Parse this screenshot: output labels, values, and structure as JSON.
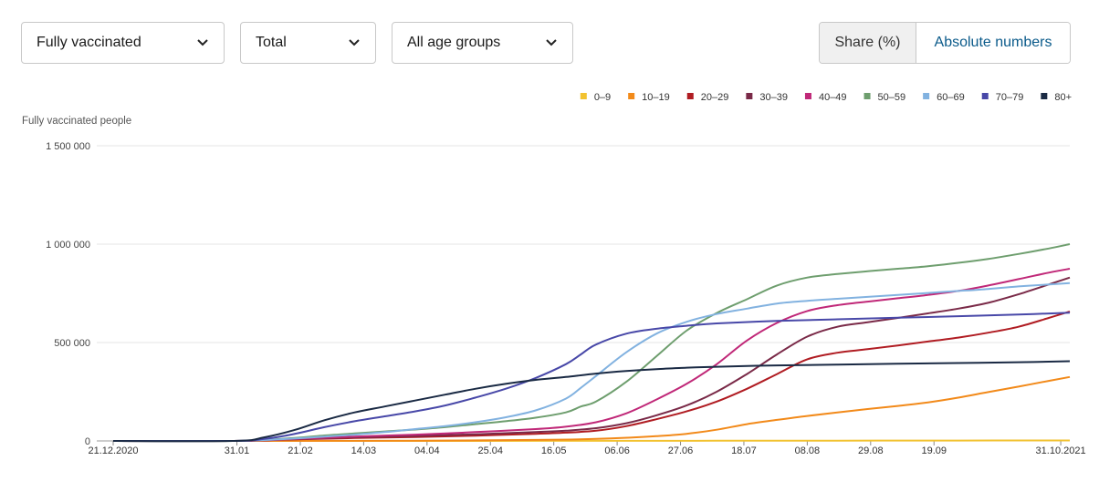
{
  "controls": {
    "dose_select": "Fully vaccinated",
    "sex_select": "Total",
    "age_select": "All age groups",
    "toggle": {
      "share_label": "Share (%)",
      "absolute_label": "Absolute numbers",
      "active": "absolute"
    }
  },
  "chart_data": {
    "type": "line",
    "ylabel": "Fully vaccinated people",
    "ylim": [
      0,
      1500000
    ],
    "y_ticks": [
      0,
      500000,
      1000000,
      1500000
    ],
    "y_tick_labels": [
      "0",
      "500 000",
      "1 000 000",
      "1 500 000"
    ],
    "x_tick_labels": [
      "21.12.2020",
      "31.01",
      "21.02",
      "14.03",
      "04.04",
      "25.04",
      "16.05",
      "06.06",
      "27.06",
      "18.07",
      "08.08",
      "29.08",
      "19.09",
      "31.10.2021"
    ],
    "x_tick_days": [
      0,
      41,
      62,
      83,
      104,
      125,
      146,
      167,
      188,
      209,
      230,
      251,
      272,
      314
    ],
    "xlim_days": [
      0,
      317
    ],
    "legend_position": "top-right",
    "grid": "horizontal",
    "series": [
      {
        "name": "0–9",
        "color": "#f2c230",
        "days": [
          0,
          60,
          120,
          160,
          200,
          240,
          280,
          317
        ],
        "values": [
          0,
          0,
          0,
          500,
          1000,
          1500,
          2000,
          2500
        ]
      },
      {
        "name": "10–19",
        "color": "#f28a1a",
        "days": [
          0,
          100,
          140,
          160,
          172,
          180,
          190,
          200,
          210,
          220,
          230,
          240,
          250,
          260,
          270,
          280,
          290,
          300,
          310,
          317
        ],
        "values": [
          0,
          1000,
          5000,
          10000,
          17000,
          24000,
          36000,
          57000,
          85000,
          107000,
          127000,
          145000,
          162000,
          178000,
          196000,
          220000,
          248000,
          276000,
          305000,
          325000
        ]
      },
      {
        "name": "20–29",
        "color": "#b01c22",
        "days": [
          0,
          40,
          60,
          80,
          100,
          120,
          140,
          150,
          160,
          170,
          180,
          190,
          200,
          210,
          220,
          230,
          240,
          250,
          260,
          270,
          280,
          290,
          300,
          310,
          317
        ],
        "values": [
          0,
          0,
          8000,
          15000,
          20000,
          27000,
          36000,
          42000,
          52000,
          75000,
          110000,
          150000,
          200000,
          265000,
          340000,
          415000,
          448000,
          466000,
          485000,
          505000,
          525000,
          550000,
          580000,
          625000,
          658000
        ]
      },
      {
        "name": "30–39",
        "color": "#7a2a48",
        "days": [
          0,
          40,
          60,
          80,
          100,
          120,
          140,
          150,
          160,
          170,
          180,
          190,
          200,
          210,
          220,
          230,
          240,
          250,
          260,
          270,
          280,
          290,
          300,
          310,
          317
        ],
        "values": [
          0,
          0,
          9000,
          18000,
          25000,
          34000,
          45000,
          52000,
          65000,
          90000,
          130000,
          180000,
          250000,
          340000,
          440000,
          530000,
          580000,
          603000,
          625000,
          648000,
          672000,
          702000,
          745000,
          795000,
          830000
        ]
      },
      {
        "name": "40–49",
        "color": "#c02878",
        "days": [
          0,
          40,
          60,
          80,
          100,
          120,
          140,
          150,
          160,
          170,
          180,
          190,
          200,
          210,
          220,
          230,
          240,
          250,
          260,
          270,
          280,
          290,
          300,
          310,
          317
        ],
        "values": [
          0,
          0,
          10000,
          22000,
          32000,
          45000,
          60000,
          72000,
          95000,
          140000,
          210000,
          290000,
          390000,
          510000,
          600000,
          660000,
          690000,
          708000,
          725000,
          742000,
          762000,
          790000,
          822000,
          855000,
          875000
        ]
      },
      {
        "name": "50–59",
        "color": "#6e9e6e",
        "days": [
          0,
          40,
          60,
          70,
          80,
          90,
          100,
          110,
          120,
          130,
          140,
          150,
          155,
          160,
          170,
          180,
          190,
          200,
          210,
          220,
          230,
          240,
          250,
          260,
          270,
          280,
          290,
          300,
          310,
          317
        ],
        "values": [
          0,
          0,
          15000,
          28000,
          38000,
          48000,
          58000,
          70000,
          85000,
          100000,
          118000,
          145000,
          175000,
          200000,
          300000,
          430000,
          560000,
          650000,
          720000,
          790000,
          830000,
          848000,
          862000,
          875000,
          888000,
          905000,
          925000,
          950000,
          978000,
          1000000
        ]
      },
      {
        "name": "60–69",
        "color": "#82b2e0",
        "days": [
          0,
          40,
          60,
          70,
          80,
          90,
          100,
          110,
          120,
          130,
          140,
          150,
          155,
          160,
          170,
          180,
          190,
          200,
          210,
          220,
          230,
          240,
          250,
          260,
          270,
          280,
          290,
          300,
          310,
          317
        ],
        "values": [
          0,
          0,
          12000,
          22000,
          32000,
          45000,
          60000,
          75000,
          95000,
          120000,
          155000,
          215000,
          270000,
          330000,
          450000,
          545000,
          605000,
          645000,
          672000,
          698000,
          712000,
          722000,
          732000,
          742000,
          752000,
          762000,
          772000,
          785000,
          795000,
          802000
        ]
      },
      {
        "name": "70–79",
        "color": "#4848a8",
        "days": [
          0,
          40,
          50,
          60,
          70,
          80,
          90,
          100,
          110,
          120,
          130,
          140,
          150,
          155,
          160,
          170,
          180,
          190,
          200,
          220,
          240,
          260,
          280,
          300,
          317
        ],
        "values": [
          0,
          0,
          10000,
          35000,
          70000,
          100000,
          125000,
          150000,
          180000,
          220000,
          265000,
          320000,
          390000,
          440000,
          490000,
          545000,
          570000,
          585000,
          597000,
          610000,
          618000,
          626000,
          634000,
          642000,
          652000
        ]
      },
      {
        "name": "80+",
        "color": "#1a2a44",
        "days": [
          0,
          40,
          50,
          60,
          70,
          80,
          90,
          100,
          110,
          120,
          130,
          140,
          150,
          160,
          170,
          180,
          190,
          200,
          220,
          240,
          260,
          280,
          300,
          317
        ],
        "values": [
          0,
          0,
          18000,
          55000,
          105000,
          145000,
          175000,
          205000,
          235000,
          265000,
          290000,
          310000,
          325000,
          342000,
          355000,
          365000,
          372000,
          377000,
          384000,
          388000,
          392000,
          396000,
          400000,
          405000
        ]
      }
    ]
  }
}
